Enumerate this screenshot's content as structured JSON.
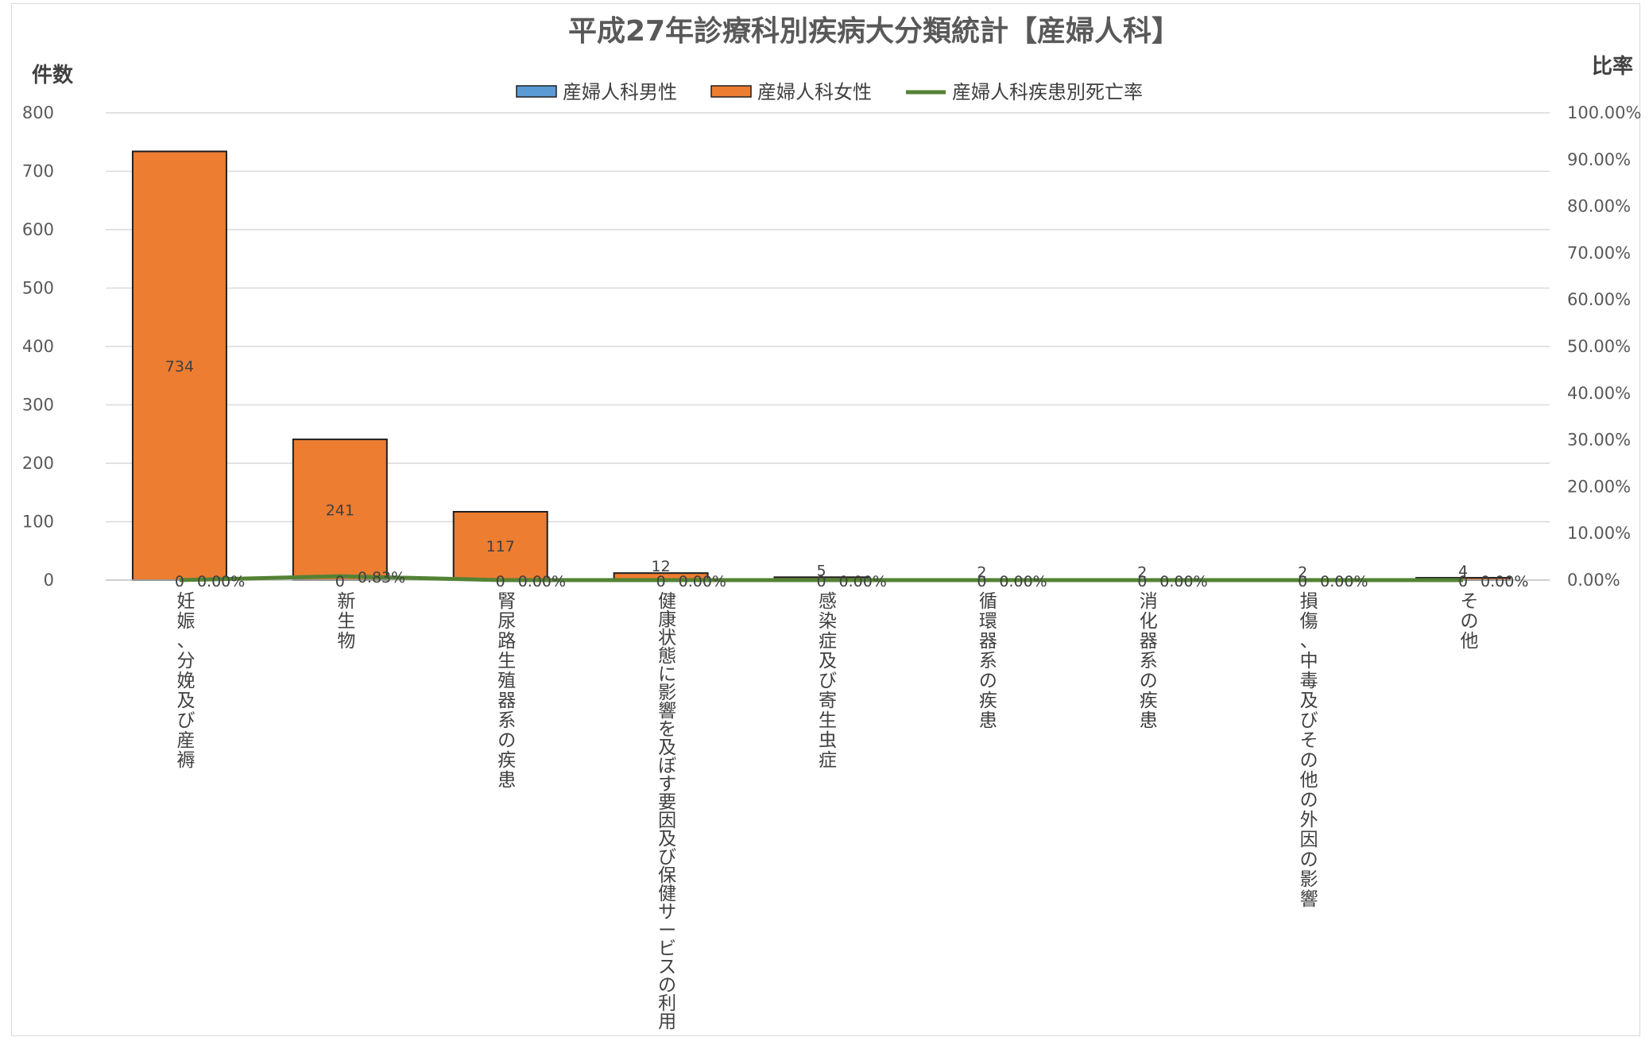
{
  "chart_data": {
    "type": "bar",
    "title": "平成27年診療科別疾病大分類統計【産婦人科】",
    "ylabel": "件数",
    "y2label": "比率",
    "ylim": [
      0,
      800
    ],
    "y2lim": [
      0,
      1
    ],
    "yticks": [
      "0",
      "100",
      "200",
      "300",
      "400",
      "500",
      "600",
      "700",
      "800"
    ],
    "y2ticks": [
      "0.00%",
      "10.00%",
      "20.00%",
      "30.00%",
      "40.00%",
      "50.00%",
      "60.00%",
      "70.00%",
      "80.00%",
      "90.00%",
      "100.00%"
    ],
    "grid": true,
    "legend_position": "top",
    "categories": [
      "妊娠、分娩及び産褥",
      "新生物",
      "腎尿路生殖器系の疾患",
      "健康状態に影響を及ぼす要因及び保健サービスの利用",
      "感染症及び寄生虫症",
      "循環器系の疾患",
      "消化器系の疾患",
      "損傷、中毒及びその他の外因の影響",
      "その他"
    ],
    "series": [
      {
        "name": "産婦人科男性",
        "type": "bar",
        "color": "#5b9bd5",
        "values": [
          0,
          0,
          0,
          0,
          0,
          0,
          0,
          0,
          0
        ],
        "labels": [
          "0",
          "0",
          "0",
          "0",
          "0",
          "0",
          "0",
          "0",
          "0"
        ]
      },
      {
        "name": "産婦人科女性",
        "type": "bar",
        "color": "#ed7d31",
        "values": [
          734,
          241,
          117,
          12,
          5,
          2,
          2,
          2,
          4
        ],
        "labels": [
          "734",
          "241",
          "117",
          "12",
          "5",
          "2",
          "2",
          "2",
          "4"
        ]
      },
      {
        "name": "産婦人科疾患別死亡率",
        "type": "line",
        "axis": "right",
        "color": "#548235",
        "values": [
          0,
          0.0083,
          0,
          0,
          0,
          0,
          0,
          0,
          0
        ],
        "labels": [
          "0.00%",
          "0.83%",
          "0.00%",
          "0.00%",
          "0.00%",
          "0.00%",
          "0.00%",
          "0.00%",
          "0.00%"
        ]
      }
    ]
  }
}
